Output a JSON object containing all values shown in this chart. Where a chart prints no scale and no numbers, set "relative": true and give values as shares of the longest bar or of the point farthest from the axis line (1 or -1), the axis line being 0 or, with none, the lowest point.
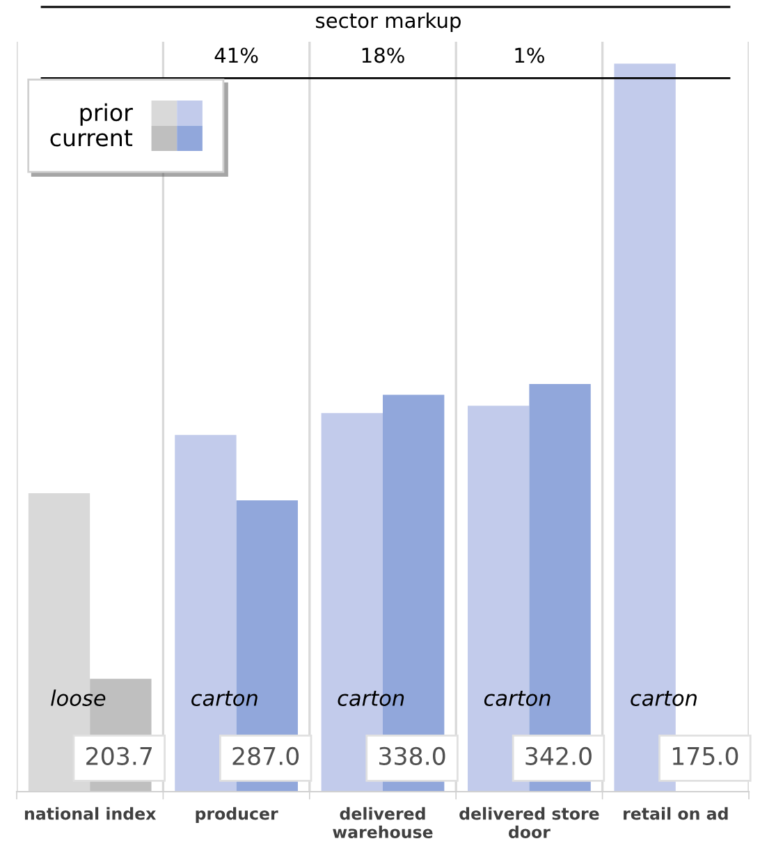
{
  "chart_data": {
    "type": "bar",
    "relative": true,
    "categories": [
      "national index",
      "producer",
      "delivered\nwarehouse",
      "delivered store\ndoor",
      "retail on ad"
    ],
    "series": [
      {
        "name": "prior",
        "colors": [
          "#d9d9d9",
          "#c2cbeb",
          "#c2cbeb",
          "#c2cbeb",
          "#c2cbeb"
        ],
        "values": [
          0.41,
          0.49,
          0.52,
          0.53,
          1
        ]
      },
      {
        "name": "current",
        "colors": [
          "#bfbfbf",
          "#91a7db",
          "#91a7db",
          "#91a7db",
          "#91a7db"
        ],
        "values": [
          0.155,
          0.4,
          0.545,
          0.56,
          null
        ]
      }
    ],
    "annotations": [
      "sector markup",
      "41%",
      "18%",
      "1%",
      "loose",
      "carton",
      "carton",
      "carton",
      "carton",
      "203.7",
      "287.0",
      "338.0",
      "342.0",
      "175.0"
    ],
    "ref_lines": [
      {
        "axis": "y",
        "value": 0.98,
        "color": "#000000"
      }
    ],
    "grid": "x",
    "legend": "top left"
  }
}
